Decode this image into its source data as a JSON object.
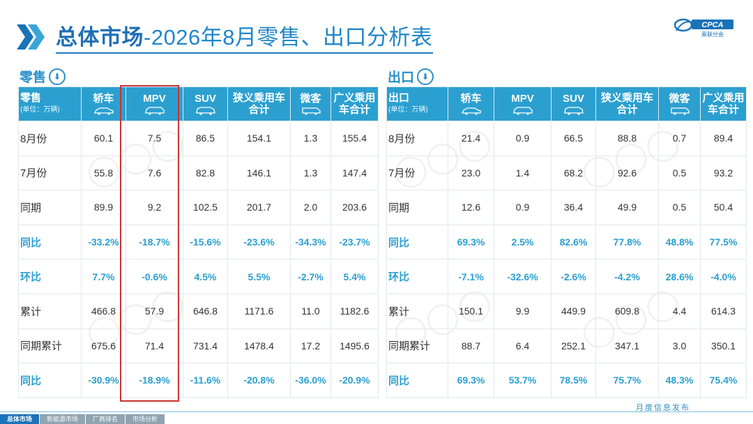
{
  "title": {
    "strong": "总体市场",
    "rest": "-2026年8月零售、出口分析表"
  },
  "logo": {
    "text": "CPCA",
    "sub": "乘联分会"
  },
  "retail": {
    "section_label": "零售",
    "header_label": "零售",
    "header_unit": "(单位：万辆)",
    "columns": [
      "轿车",
      "MPV",
      "SUV",
      "狭义乘用车合计",
      "微客",
      "广义乘用车合计"
    ],
    "rows": [
      {
        "label": "8月份",
        "values": [
          "60.1",
          "7.5",
          "86.5",
          "154.1",
          "1.3",
          "155.4"
        ]
      },
      {
        "label": "7月份",
        "values": [
          "55.8",
          "7.6",
          "82.8",
          "146.1",
          "1.3",
          "147.4"
        ]
      },
      {
        "label": "同期",
        "values": [
          "89.9",
          "9.2",
          "102.5",
          "201.7",
          "2.0",
          "203.6"
        ]
      },
      {
        "label": "同比",
        "values": [
          "-33.2%",
          "-18.7%",
          "-15.6%",
          "-23.6%",
          "-34.3%",
          "-23.7%"
        ]
      },
      {
        "label": "环比",
        "values": [
          "7.7%",
          "-0.6%",
          "4.5%",
          "5.5%",
          "-2.7%",
          "5.4%"
        ]
      },
      {
        "label": "累计",
        "values": [
          "466.8",
          "57.9",
          "646.8",
          "1171.6",
          "11.0",
          "1182.6"
        ]
      },
      {
        "label": "同期累计",
        "values": [
          "675.6",
          "71.4",
          "731.4",
          "1478.4",
          "17.2",
          "1495.6"
        ]
      },
      {
        "label": "同比",
        "values": [
          "-30.9%",
          "-18.9%",
          "-11.6%",
          "-20.8%",
          "-36.0%",
          "-20.9%"
        ]
      }
    ]
  },
  "export": {
    "section_label": "出口",
    "header_label": "出口",
    "header_unit": "(单位：万辆)",
    "columns": [
      "轿车",
      "MPV",
      "SUV",
      "狭义乘用车合计",
      "微客",
      "广义乘用车合计"
    ],
    "rows": [
      {
        "label": "8月份",
        "values": [
          "21.4",
          "0.9",
          "66.5",
          "88.8",
          "0.7",
          "89.4"
        ]
      },
      {
        "label": "7月份",
        "values": [
          "23.0",
          "1.4",
          "68.2",
          "92.6",
          "0.5",
          "93.2"
        ]
      },
      {
        "label": "同期",
        "values": [
          "12.6",
          "0.9",
          "36.4",
          "49.9",
          "0.5",
          "50.4"
        ]
      },
      {
        "label": "同比",
        "values": [
          "69.3%",
          "2.5%",
          "82.6%",
          "77.8%",
          "48.8%",
          "77.5%"
        ]
      },
      {
        "label": "环比",
        "values": [
          "-7.1%",
          "-32.6%",
          "-2.6%",
          "-4.2%",
          "28.6%",
          "-4.0%"
        ]
      },
      {
        "label": "累计",
        "values": [
          "150.1",
          "9.9",
          "449.9",
          "609.8",
          "4.4",
          "614.3"
        ]
      },
      {
        "label": "同期累计",
        "values": [
          "88.7",
          "6.4",
          "252.1",
          "347.1",
          "3.0",
          "350.1"
        ]
      },
      {
        "label": "同比",
        "values": [
          "69.3%",
          "53.7%",
          "78.5%",
          "75.7%",
          "48.3%",
          "75.4%"
        ]
      }
    ]
  },
  "footer": {
    "tabs": [
      "总体市场",
      "新能源市场",
      "厂商排名",
      "市场分析"
    ],
    "right_text": "月度信息发布"
  },
  "colors": {
    "header_bg": "#2ba0d0",
    "highlight_text": "#2a9fd0",
    "title": "#1f78c1",
    "mpv_box": "#cc3333"
  }
}
